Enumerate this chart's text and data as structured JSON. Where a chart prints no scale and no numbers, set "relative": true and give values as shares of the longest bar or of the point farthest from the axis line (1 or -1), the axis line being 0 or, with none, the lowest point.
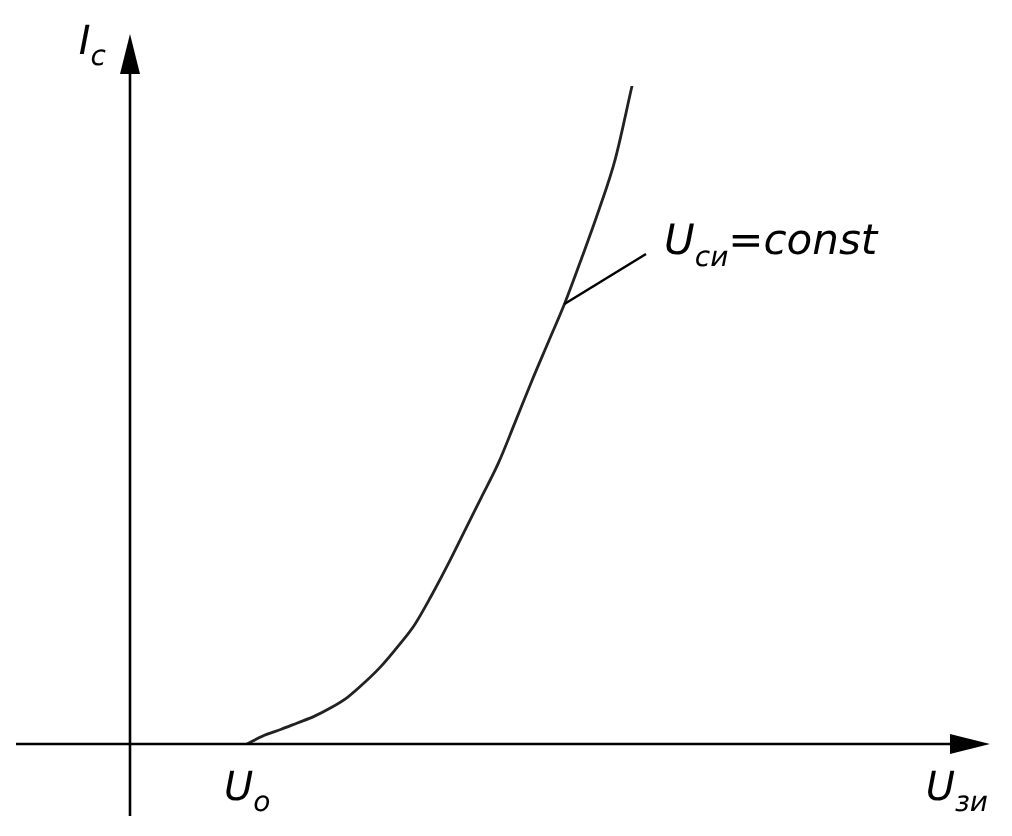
{
  "chart_data": {
    "type": "line",
    "relative": true,
    "ylabel": "I$_{с}$",
    "xlabel": "U$_{зи}$",
    "categories": [
      null,
      null,
      null,
      null,
      null,
      null,
      null,
      null,
      null,
      null,
      null,
      null,
      null,
      null,
      null,
      null,
      null,
      null,
      null,
      null,
      null,
      null,
      null,
      null,
      null,
      null,
      null,
      null,
      null,
      null,
      null,
      null,
      null,
      null,
      null,
      null,
      null,
      null,
      null,
      null,
      null,
      null,
      null,
      null,
      null,
      null,
      null,
      null,
      null,
      null,
      null,
      null
    ],
    "values": [
      null,
      null,
      null,
      null,
      null,
      null,
      null,
      0,
      0.013,
      0.022,
      0.032,
      0.042,
      0.055,
      0.071,
      0.093,
      0.118,
      0.148,
      0.181,
      0.225,
      0.273,
      0.324,
      0.375,
      0.426,
      0.488,
      0.551,
      0.611,
      0.671,
      0.739,
      0.81,
      0.889,
      1,
      null,
      null,
      null,
      null,
      null,
      null,
      null,
      null,
      null,
      null,
      null,
      null,
      null,
      null,
      null,
      null,
      null,
      null,
      null,
      null,
      null
    ],
    "color": "#222222",
    "marker": "none",
    "line_style": "solid",
    "annotations": [
      {
        "text": "U$_{о}$",
        "y": 0
      },
      "U$_{си}$=const"
    ]
  }
}
